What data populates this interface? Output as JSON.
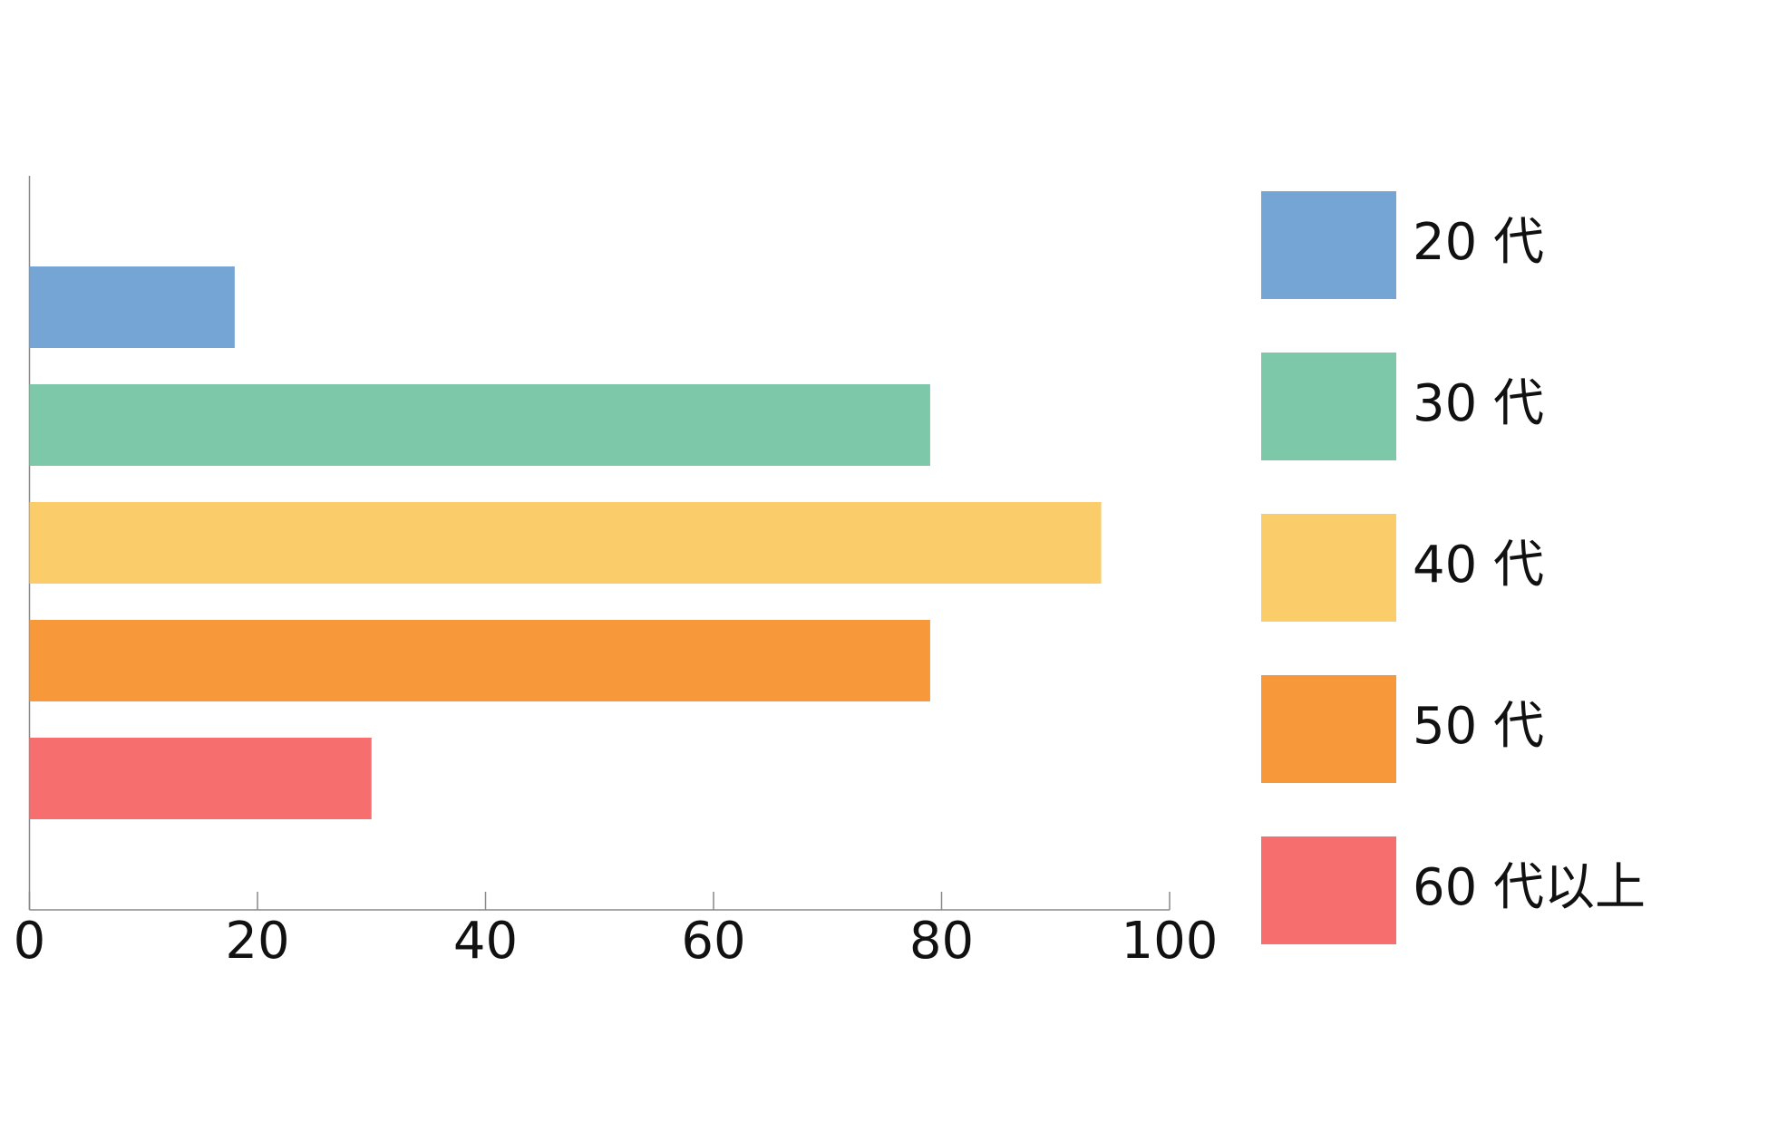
{
  "chart_data": {
    "type": "barh",
    "categories": [
      "20 代",
      "30 代",
      "40 代",
      "50 代",
      "60 代以上"
    ],
    "values": [
      18,
      79,
      94,
      79,
      30
    ],
    "colors": [
      "#75a5d5",
      "#7dc8a8",
      "#fbcd6a",
      "#f7993a",
      "#f76e6f"
    ],
    "xlim": [
      0,
      100
    ],
    "xticks": [
      0,
      20,
      40,
      60,
      80,
      100
    ],
    "legend": "right"
  }
}
